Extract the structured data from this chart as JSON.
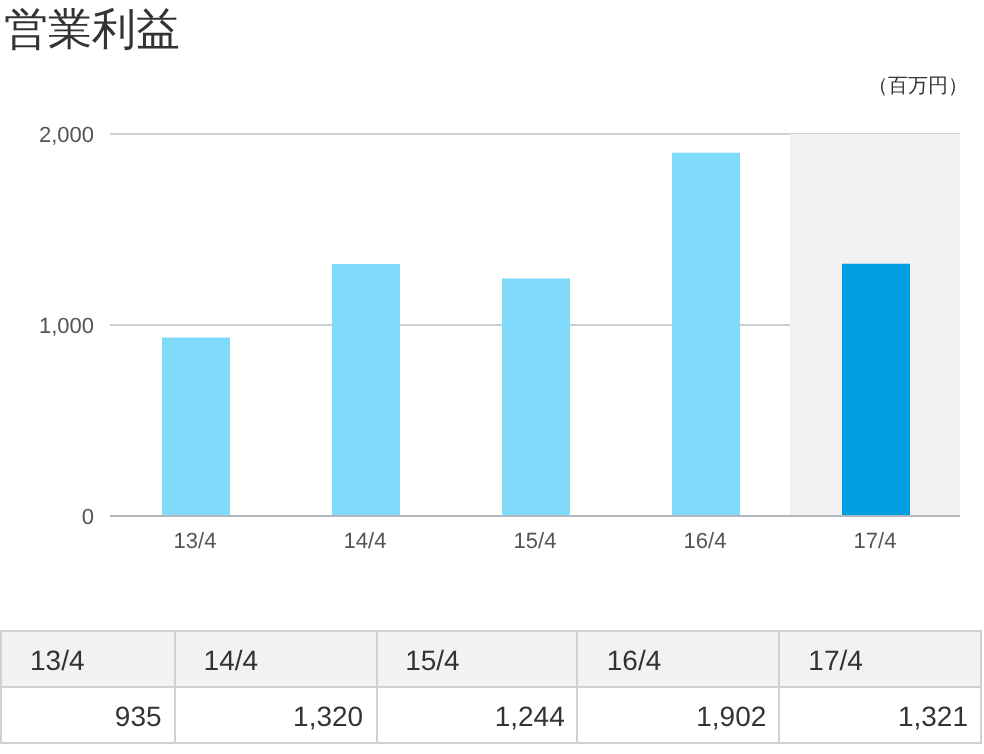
{
  "chart_data": {
    "type": "bar",
    "title": "営業利益",
    "annotations": [
      "（百万円）"
    ],
    "categories": [
      "13/4",
      "14/4",
      "15/4",
      "16/4",
      "17/4"
    ],
    "values": [
      935,
      1320,
      1244,
      1902,
      1321
    ],
    "colors": [
      "#80dafa",
      "#80dafa",
      "#80dafa",
      "#80dafa",
      "#009fe3"
    ],
    "value_labels": [
      "935",
      "1,320",
      "1,244",
      "1,902",
      "1,321"
    ],
    "ylim": [
      0,
      2000
    ],
    "yticks": [
      0,
      {
        "value": 1000,
        "label": "1,000"
      },
      {
        "value": 2000,
        "label": "2,000"
      }
    ],
    "grid": "y",
    "bands": [
      {
        "axis": "x",
        "from": "17/4",
        "to": "17/4",
        "color": "#f2f2f2"
      }
    ]
  }
}
